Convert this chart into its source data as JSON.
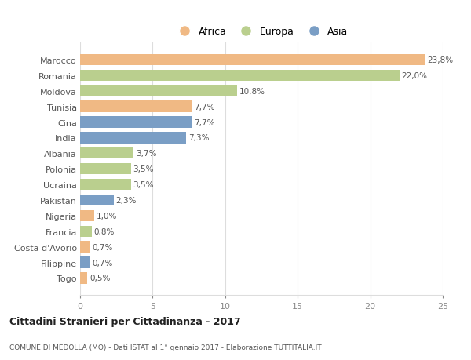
{
  "categories": [
    "Marocco",
    "Romania",
    "Moldova",
    "Tunisia",
    "Cina",
    "India",
    "Albania",
    "Polonia",
    "Ucraina",
    "Pakistan",
    "Nigeria",
    "Francia",
    "Costa d'Avorio",
    "Filippine",
    "Togo"
  ],
  "values": [
    23.8,
    22.0,
    10.8,
    7.7,
    7.7,
    7.3,
    3.7,
    3.5,
    3.5,
    2.3,
    1.0,
    0.8,
    0.7,
    0.7,
    0.5
  ],
  "labels": [
    "23,8%",
    "22,0%",
    "10,8%",
    "7,7%",
    "7,7%",
    "7,3%",
    "3,7%",
    "3,5%",
    "3,5%",
    "2,3%",
    "1,0%",
    "0,8%",
    "0,7%",
    "0,7%",
    "0,5%"
  ],
  "continents": [
    "Africa",
    "Europa",
    "Europa",
    "Africa",
    "Asia",
    "Asia",
    "Europa",
    "Europa",
    "Europa",
    "Asia",
    "Africa",
    "Europa",
    "Africa",
    "Asia",
    "Africa"
  ],
  "continent_colors": {
    "Africa": "#F0B984",
    "Europa": "#BACF8E",
    "Asia": "#7A9EC5"
  },
  "legend_labels": [
    "Africa",
    "Europa",
    "Asia"
  ],
  "legend_colors": [
    "#F0B984",
    "#BACF8E",
    "#7A9EC5"
  ],
  "title": "Cittadini Stranieri per Cittadinanza - 2017",
  "subtitle": "COMUNE DI MEDOLLA (MO) - Dati ISTAT al 1° gennaio 2017 - Elaborazione TUTTITALIA.IT",
  "xlim": [
    0,
    25
  ],
  "xticks": [
    0,
    5,
    10,
    15,
    20,
    25
  ],
  "background_color": "#ffffff",
  "grid_color": "#dddddd",
  "bar_height": 0.72
}
